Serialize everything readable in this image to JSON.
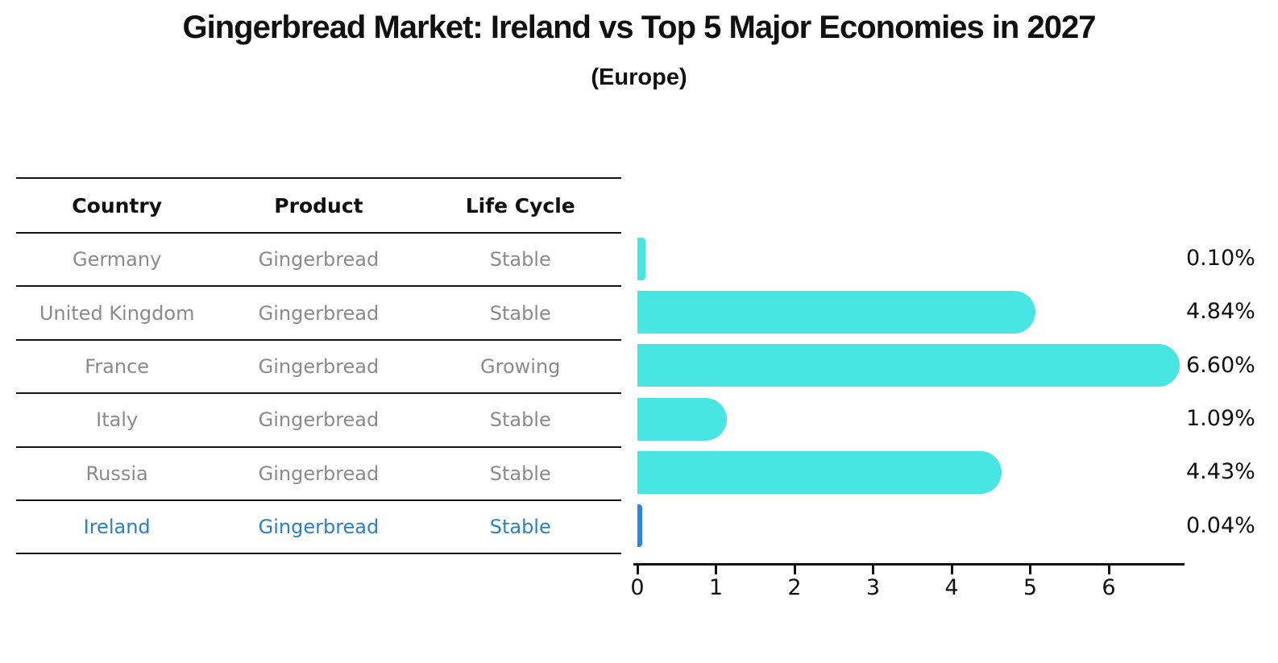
{
  "chart_data": {
    "type": "bar",
    "orientation": "horizontal",
    "title": "Gingerbread Market: Ireland vs Top 5 Major Economies in 2027",
    "subtitle": "(Europe)",
    "categories": [
      "Germany",
      "United Kingdom",
      "France",
      "Italy",
      "Russia",
      "Ireland"
    ],
    "values": [
      0.1,
      4.84,
      6.6,
      1.09,
      4.43,
      0.04
    ],
    "value_labels": [
      "0.10%",
      "4.84%",
      "6.60%",
      "1.09%",
      "4.43%",
      "0.04%"
    ],
    "x_ticks": [
      0,
      1,
      2,
      3,
      4,
      5,
      6
    ],
    "xlim": [
      0,
      6.8
    ],
    "grid": false,
    "legend": "none",
    "bar_color": "#48e5e3",
    "highlight_color": "#2e86de",
    "highlight_index": 5
  },
  "table": {
    "headers": {
      "country": "Country",
      "product": "Product",
      "life_cycle": "Life Cycle"
    },
    "rows": [
      {
        "country": "Germany",
        "product": "Gingerbread",
        "life_cycle": "Stable"
      },
      {
        "country": "United Kingdom",
        "product": "Gingerbread",
        "life_cycle": "Stable"
      },
      {
        "country": "France",
        "product": "Gingerbread",
        "life_cycle": "Growing"
      },
      {
        "country": "Italy",
        "product": "Gingerbread",
        "life_cycle": "Stable"
      },
      {
        "country": "Russia",
        "product": "Gingerbread",
        "life_cycle": "Stable"
      },
      {
        "country": "Ireland",
        "product": "Gingerbread",
        "life_cycle": "Stable"
      }
    ]
  }
}
